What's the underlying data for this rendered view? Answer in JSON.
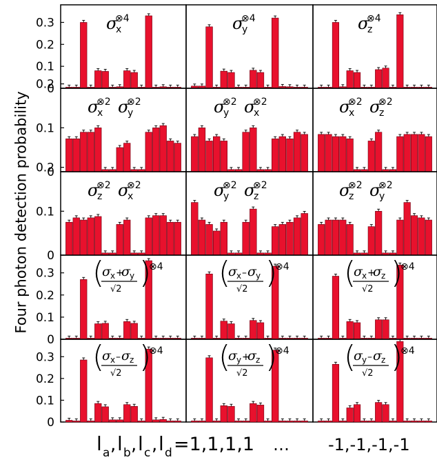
{
  "figure": {
    "ylabel": "Four photon detection probability",
    "xlabel_start": "l",
    "xlabel_subscripts": [
      "a",
      "b",
      "c",
      "d"
    ],
    "xlabel_first_value": "1,1,1,1",
    "xlabel_ellipsis": "…",
    "xlabel_last_value": "-1,-1,-1,-1",
    "bar_color": "#e8112d",
    "bar_edge_color": "#6b0010"
  },
  "chart_data": {
    "type": "bar",
    "layout": "grid of 5 rows x 3 columns, shared y-axis per row",
    "categories_count": 16,
    "y_scales": [
      {
        "row": 1,
        "ylim": [
          0,
          0.38
        ],
        "ticks": [
          "0",
          "0.1",
          "0.2",
          "0.3"
        ]
      },
      {
        "row": 2,
        "ylim": [
          0,
          0.19
        ],
        "ticks": [
          "0",
          "0.1",
          "0.2"
        ]
      },
      {
        "row": 3,
        "ylim": [
          0,
          0.19
        ],
        "ticks": [
          "0",
          "0.1",
          "0.2"
        ]
      },
      {
        "row": 4,
        "ylim": [
          0,
          0.38
        ],
        "ticks": [
          "0",
          "0.1",
          "0.2",
          "0.3"
        ]
      },
      {
        "row": 5,
        "ylim": [
          0,
          0.38
        ],
        "ticks": [
          "0",
          "0.1",
          "0.2",
          "0.3"
        ]
      }
    ],
    "panels": [
      {
        "row": 1,
        "col": 1,
        "label": "σx⊗4",
        "values": [
          0.005,
          0.005,
          0.3,
          0.005,
          0.08,
          0.077,
          0.005,
          0.007,
          0.08,
          0.072,
          0.005,
          0.33,
          0.005,
          0.007,
          0.005,
          0.005
        ]
      },
      {
        "row": 1,
        "col": 2,
        "label": "σy⊗4",
        "values": [
          0.01,
          0.01,
          0.28,
          0.005,
          0.078,
          0.072,
          0.005,
          0.005,
          0.082,
          0.072,
          0.005,
          0.32,
          0.008,
          0.007,
          0.005,
          0.005
        ]
      },
      {
        "row": 1,
        "col": 3,
        "label": "σz⊗4",
        "values": [
          0.005,
          0.005,
          0.3,
          0.007,
          0.08,
          0.072,
          0.005,
          0.005,
          0.085,
          0.092,
          0.005,
          0.335,
          0.005,
          0.005,
          0.005,
          0.005
        ]
      },
      {
        "row": 2,
        "col": 1,
        "label": "σx⊗2σy⊗2",
        "values": [
          0.075,
          0.075,
          0.09,
          0.09,
          0.1,
          0.005,
          0.005,
          0.055,
          0.065,
          0.005,
          0.005,
          0.09,
          0.1,
          0.105,
          0.07,
          0.065
        ]
      },
      {
        "row": 2,
        "col": 2,
        "label": "σy⊗2σx⊗2",
        "values": [
          0.08,
          0.1,
          0.07,
          0.08,
          0.07,
          0.005,
          0.005,
          0.09,
          0.1,
          0.005,
          0.005,
          0.075,
          0.08,
          0.075,
          0.09,
          0.085
        ]
      },
      {
        "row": 2,
        "col": 3,
        "label": "σx⊗2σz⊗2",
        "values": [
          0.085,
          0.085,
          0.08,
          0.08,
          0.075,
          0.005,
          0.005,
          0.07,
          0.09,
          0.005,
          0.005,
          0.08,
          0.085,
          0.085,
          0.085,
          0.08
        ]
      },
      {
        "row": 3,
        "col": 1,
        "label": "σz⊗2σx⊗2",
        "values": [
          0.075,
          0.085,
          0.08,
          0.085,
          0.088,
          0.005,
          0.005,
          0.07,
          0.08,
          0.005,
          0.005,
          0.085,
          0.09,
          0.09,
          0.075,
          0.075
        ]
      },
      {
        "row": 3,
        "col": 2,
        "label": "σy⊗2σz⊗2",
        "values": [
          0.12,
          0.08,
          0.07,
          0.055,
          0.075,
          0.005,
          0.005,
          0.075,
          0.105,
          0.005,
          0.005,
          0.065,
          0.07,
          0.075,
          0.085,
          0.095
        ]
      },
      {
        "row": 3,
        "col": 3,
        "label": "σz⊗2σy⊗2",
        "values": [
          0.07,
          0.08,
          0.08,
          0.08,
          0.07,
          0.005,
          0.005,
          0.065,
          0.1,
          0.005,
          0.005,
          0.08,
          0.12,
          0.09,
          0.085,
          0.08
        ]
      },
      {
        "row": 4,
        "col": 1,
        "label": "((σx+σy)/√2)⊗4",
        "values": [
          0.005,
          0.005,
          0.27,
          0.005,
          0.07,
          0.072,
          0.005,
          0.005,
          0.08,
          0.072,
          0.005,
          0.355,
          0.005,
          0.005,
          0.005,
          0.005
        ]
      },
      {
        "row": 4,
        "col": 2,
        "label": "((σx−σy)/√2)⊗4",
        "values": [
          0.005,
          0.005,
          0.295,
          0.005,
          0.082,
          0.07,
          0.005,
          0.005,
          0.085,
          0.075,
          0.005,
          0.33,
          0.005,
          0.005,
          0.005,
          0.005
        ]
      },
      {
        "row": 4,
        "col": 3,
        "label": "((σx+σz)/√2)⊗4",
        "values": [
          0.005,
          0.005,
          0.285,
          0.005,
          0.08,
          0.075,
          0.005,
          0.005,
          0.088,
          0.088,
          0.005,
          0.335,
          0.005,
          0.005,
          0.005,
          0.005
        ]
      },
      {
        "row": 5,
        "col": 1,
        "label": "((σx−σz)/√2)⊗4",
        "values": [
          0.008,
          0.005,
          0.285,
          0.005,
          0.085,
          0.07,
          0.01,
          0.01,
          0.08,
          0.072,
          0.005,
          0.335,
          0.01,
          0.012,
          0.005,
          0.005
        ]
      },
      {
        "row": 5,
        "col": 2,
        "label": "((σy+σz)/√2)⊗4",
        "values": [
          0.005,
          0.005,
          0.295,
          0.005,
          0.075,
          0.072,
          0.005,
          0.005,
          0.085,
          0.078,
          0.005,
          0.33,
          0.005,
          0.005,
          0.005,
          0.005
        ]
      },
      {
        "row": 5,
        "col": 3,
        "label": "((σy−σz)/√2)⊗4",
        "values": [
          0.005,
          0.005,
          0.265,
          0.005,
          0.065,
          0.08,
          0.005,
          0.005,
          0.09,
          0.08,
          0.005,
          0.37,
          0.005,
          0.005,
          0.005,
          0.005
        ]
      }
    ]
  }
}
